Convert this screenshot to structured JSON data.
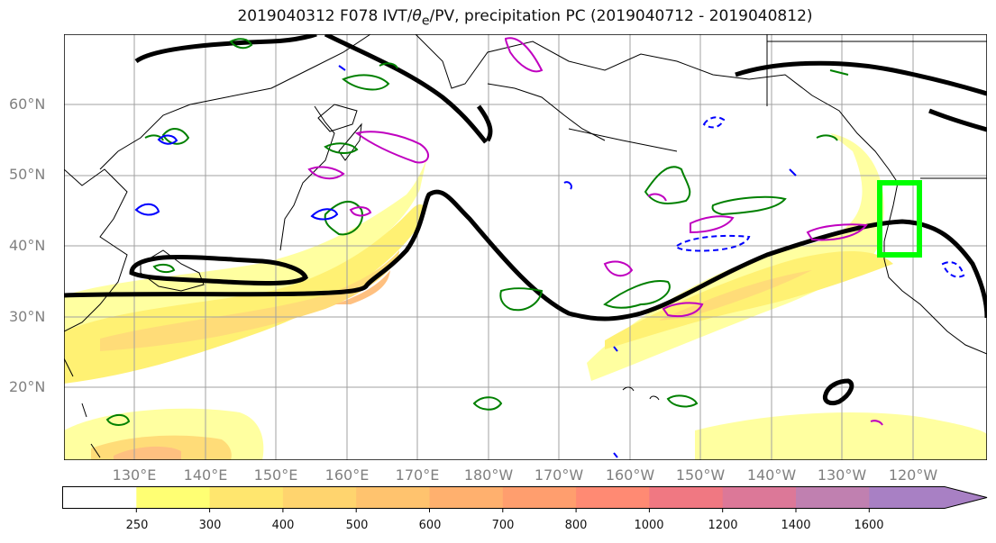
{
  "title": "2019040312 F078 IVT/θe/PV, precipitation PC (2019040712 - 2019040812)",
  "title_parts": {
    "prefix": "2019040312 F078 IVT/",
    "theta": "θ",
    "sub": "e",
    "suffix": "/PV, precipitation PC (2019040712 - 2019040812)"
  },
  "map": {
    "lat_labels": [
      "60°N",
      "50°N",
      "40°N",
      "30°N",
      "20°N"
    ],
    "lon_labels": [
      "130°E",
      "140°E",
      "150°E",
      "160°E",
      "170°E",
      "180°W",
      "170°W",
      "160°W",
      "150°W",
      "140°W",
      "130°W",
      "120°W"
    ],
    "highlight_box_color": "#00ff00",
    "contour_colors": {
      "jet": "#000000",
      "positive": "#008000",
      "negative": "#0000ff",
      "pv": "#c000c0"
    }
  },
  "colorbar": {
    "levels": [
      "250",
      "300",
      "400",
      "500",
      "600",
      "700",
      "800",
      "1000",
      "1200",
      "1400",
      "1600"
    ],
    "colors": [
      "#ffffff",
      "#ffff73",
      "#ffe66e",
      "#ffd46e",
      "#ffc36e",
      "#ffb06e",
      "#ff9e6e",
      "#ff8a73",
      "#f07882",
      "#dc7898",
      "#c080b0",
      "#a880c4"
    ]
  }
}
